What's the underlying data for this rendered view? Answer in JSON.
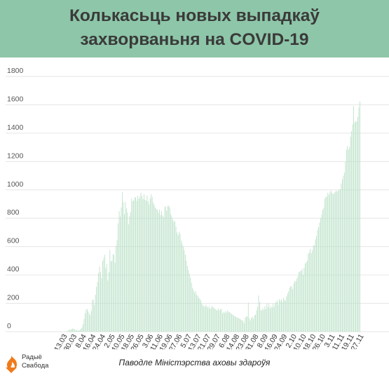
{
  "header": {
    "title_line1": "Колькасьць новых выпадкаў",
    "title_line2": "захворваньня на COVID-19"
  },
  "footer": {
    "source": "Паводле Міністэрства аховы здароўя",
    "logo_line1": "Радыё",
    "logo_line2": "Свабода"
  },
  "colors": {
    "banner": "#8dc6a8",
    "bar": "#b9e0c6",
    "grid": "#e6e6e6",
    "logo_orange": "#f07a1a"
  },
  "chart_data": {
    "type": "bar",
    "ylim": [
      0,
      1800
    ],
    "yticks": [
      0,
      200,
      400,
      600,
      800,
      1000,
      1200,
      1400,
      1600,
      1800
    ],
    "grid": true,
    "start_date": "13.03",
    "xtick_labels": [
      "13.03",
      "30.03",
      "8.04",
      "16.04",
      "24.04",
      "2.05",
      "10.05",
      "18.05",
      "26.05",
      "3.06",
      "11.06",
      "19.06",
      "27.06",
      "5.07",
      "13.07",
      "21.07",
      "29.07",
      "6.08",
      "14.08",
      "23.08",
      "31.08",
      "8.09",
      "16.09",
      "24.09",
      "2.10",
      "10.10",
      "18.10",
      "26.10",
      "3.11",
      "11.11",
      "19.11",
      "27.11"
    ],
    "values": [
      0,
      3,
      5,
      9,
      16,
      14,
      20,
      22,
      20,
      15,
      12,
      11,
      9,
      8,
      14,
      20,
      30,
      53,
      89,
      130,
      157,
      160,
      142,
      128,
      116,
      147,
      225,
      225,
      190,
      260,
      316,
      350,
      414,
      460,
      421,
      378,
      500,
      520,
      542,
      448,
      476,
      361,
      420,
      576,
      496,
      500,
      548,
      542,
      485,
      606,
      646,
      764,
      850,
      812,
      876,
      983,
      913,
      829,
      915,
      870,
      842,
      758,
      814,
      843,
      940,
      920,
      927,
      947,
      948,
      923,
      960,
      937,
      951,
      980,
      958,
      935,
      970,
      930,
      925,
      960,
      920,
      898,
      940,
      970,
      950,
      910,
      895,
      875,
      865,
      860,
      840,
      860,
      823,
      850,
      820,
      808,
      878,
      884,
      853,
      886,
      888,
      875,
      830,
      810,
      790,
      775,
      780,
      740,
      700,
      680,
      705,
      690,
      643,
      620,
      600,
      577,
      543,
      500,
      462,
      434,
      410,
      380,
      346,
      309,
      293,
      275,
      285,
      260,
      255,
      240,
      233,
      220,
      200,
      185,
      180,
      175,
      190,
      178,
      167,
      180,
      161,
      168,
      182,
      173,
      165,
      160,
      155,
      150,
      165,
      150,
      158,
      160,
      130,
      140,
      132,
      145,
      134,
      150,
      141,
      138,
      130,
      125,
      120,
      115,
      110,
      105,
      100,
      98,
      95,
      90,
      85,
      80,
      75,
      60,
      100,
      105,
      110,
      205,
      95,
      80,
      100,
      105,
      90,
      115,
      120,
      150,
      175,
      255,
      210,
      155,
      150,
      165,
      154,
      180,
      160,
      198,
      175,
      200,
      165,
      180,
      170,
      198,
      175,
      200,
      210,
      220,
      190,
      230,
      219,
      230,
      210,
      240,
      223,
      220,
      250,
      270,
      285,
      309,
      322,
      320,
      300,
      340,
      358,
      355,
      374,
      390,
      420,
      426,
      429,
      442,
      400,
      450,
      480,
      490,
      500,
      550,
      560,
      584,
      553,
      574,
      606,
      611,
      650,
      676,
      718,
      738,
      770,
      800,
      828,
      860,
      875,
      938,
      951,
      953,
      980,
      966,
      982,
      995,
      980,
      970,
      975,
      985,
      995,
      988,
      995,
      1000,
      1005,
      1045,
      1075,
      1100,
      1121,
      1198,
      1285,
      1310,
      1285,
      1300,
      1375,
      1415,
      1463,
      1590,
      1475,
      1485,
      1481,
      1515,
      1581,
      1625,
      0
    ]
  }
}
